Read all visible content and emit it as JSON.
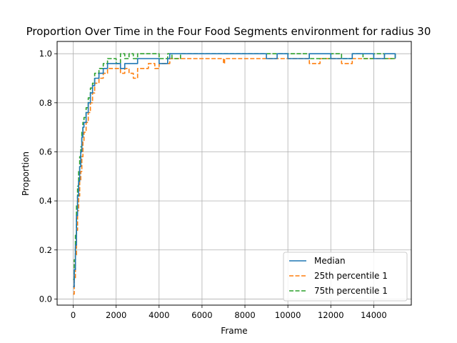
{
  "chart_data": {
    "type": "line",
    "title": "Proportion Over Time in the Four Food Segments environment for radius 30",
    "xlabel": "Frame",
    "ylabel": "Proportion",
    "xlim": [
      -750,
      15750
    ],
    "ylim": [
      -0.025,
      1.05
    ],
    "xticks": [
      0,
      2000,
      4000,
      6000,
      8000,
      10000,
      12000,
      14000
    ],
    "yticks": [
      0.0,
      0.2,
      0.4,
      0.6,
      0.8,
      1.0
    ],
    "xtick_labels": [
      "0",
      "2000",
      "4000",
      "6000",
      "8000",
      "10000",
      "12000",
      "14000"
    ],
    "ytick_labels": [
      "0.0",
      "0.2",
      "0.4",
      "0.6",
      "0.8",
      "1.0"
    ],
    "grid": true,
    "legend_position": "lower-right",
    "series": [
      {
        "name": "Median",
        "color": "#1f77b4",
        "style": "solid",
        "x": [
          0,
          50,
          100,
          150,
          200,
          250,
          300,
          350,
          400,
          450,
          500,
          600,
          700,
          800,
          900,
          1000,
          1200,
          1400,
          1600,
          1800,
          2000,
          2200,
          2400,
          3000,
          3500,
          4000,
          4400,
          4500,
          5000,
          6000,
          8000,
          9000,
          9500,
          10000,
          11000,
          12000,
          13000,
          14000,
          14500,
          15000
        ],
        "y": [
          0.05,
          0.12,
          0.22,
          0.34,
          0.42,
          0.48,
          0.54,
          0.6,
          0.66,
          0.7,
          0.72,
          0.76,
          0.8,
          0.84,
          0.87,
          0.9,
          0.92,
          0.94,
          0.96,
          0.96,
          0.96,
          0.94,
          0.96,
          0.98,
          0.98,
          0.96,
          0.98,
          1.0,
          1.0,
          1.0,
          1.0,
          0.98,
          1.0,
          0.98,
          1.0,
          0.98,
          1.0,
          0.98,
          1.0,
          0.98
        ]
      },
      {
        "name": "25th percentile 1",
        "color": "#ff7f0e",
        "style": "dashed",
        "x": [
          0,
          50,
          100,
          150,
          200,
          250,
          300,
          350,
          400,
          450,
          500,
          600,
          700,
          800,
          900,
          1000,
          1200,
          1400,
          1600,
          1800,
          2000,
          2200,
          2400,
          2600,
          2800,
          3000,
          3200,
          3500,
          3800,
          4000,
          4200,
          4500,
          5000,
          6000,
          7000,
          7050,
          8000,
          9000,
          10000,
          10500,
          11000,
          11500,
          12000,
          12500,
          13000,
          13500,
          14000,
          15000
        ],
        "y": [
          0.02,
          0.08,
          0.18,
          0.28,
          0.36,
          0.42,
          0.48,
          0.52,
          0.58,
          0.64,
          0.68,
          0.72,
          0.76,
          0.8,
          0.84,
          0.88,
          0.9,
          0.92,
          0.94,
          0.94,
          0.94,
          0.92,
          0.94,
          0.92,
          0.9,
          0.94,
          0.94,
          0.96,
          0.94,
          0.96,
          0.96,
          0.98,
          0.98,
          0.98,
          0.96,
          0.98,
          0.98,
          0.98,
          0.98,
          0.98,
          0.96,
          0.98,
          0.98,
          0.96,
          0.98,
          0.98,
          0.98,
          0.98
        ]
      },
      {
        "name": "75th percentile 1",
        "color": "#2ca02c",
        "style": "dashed",
        "x": [
          0,
          50,
          100,
          150,
          200,
          250,
          300,
          350,
          400,
          450,
          500,
          600,
          700,
          800,
          900,
          1000,
          1200,
          1400,
          1600,
          1800,
          2000,
          2200,
          2400,
          2600,
          2800,
          3000,
          3200,
          3500,
          4000,
          4400,
          4600,
          5000,
          6000,
          8000,
          10000,
          11000,
          12000,
          12500,
          13000,
          13500,
          14000,
          14500,
          15000
        ],
        "y": [
          0.08,
          0.16,
          0.26,
          0.38,
          0.46,
          0.52,
          0.58,
          0.62,
          0.68,
          0.72,
          0.74,
          0.78,
          0.82,
          0.86,
          0.88,
          0.92,
          0.94,
          0.96,
          0.98,
          0.98,
          0.96,
          1.0,
          0.98,
          1.0,
          0.98,
          1.0,
          1.0,
          1.0,
          0.98,
          1.0,
          0.98,
          1.0,
          1.0,
          1.0,
          1.0,
          0.98,
          1.0,
          0.98,
          1.0,
          0.98,
          1.0,
          0.98,
          1.0
        ]
      }
    ]
  }
}
